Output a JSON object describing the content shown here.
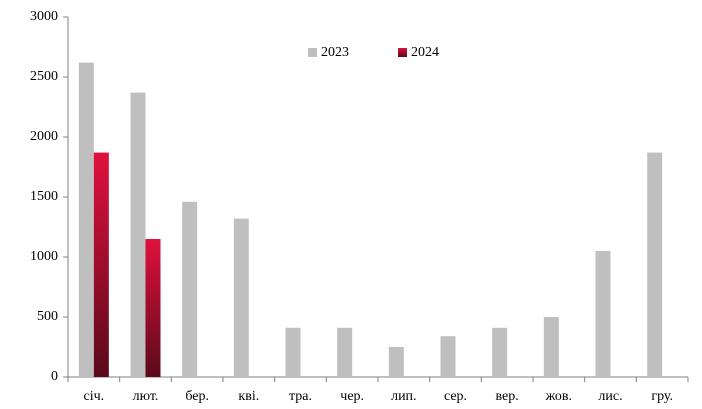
{
  "chart_data": {
    "type": "bar",
    "categories": [
      "січ.",
      "лют.",
      "бер.",
      "кві.",
      "тра.",
      "чер.",
      "лип.",
      "сер.",
      "вер.",
      "жов.",
      "лис.",
      "гру."
    ],
    "series": [
      {
        "name": "2023",
        "color": "#bfbfbf",
        "values": [
          2620,
          2370,
          1460,
          1320,
          410,
          410,
          250,
          340,
          410,
          500,
          1050,
          1870
        ]
      },
      {
        "name": "2024",
        "color": "#e0103e",
        "values": [
          1870,
          1150,
          null,
          null,
          null,
          null,
          null,
          null,
          null,
          null,
          null,
          null
        ]
      }
    ],
    "ylim": [
      0,
      3000
    ],
    "yticks": [
      0,
      500,
      1000,
      1500,
      2000,
      2500,
      3000
    ],
    "grid": false,
    "legend": "top"
  }
}
